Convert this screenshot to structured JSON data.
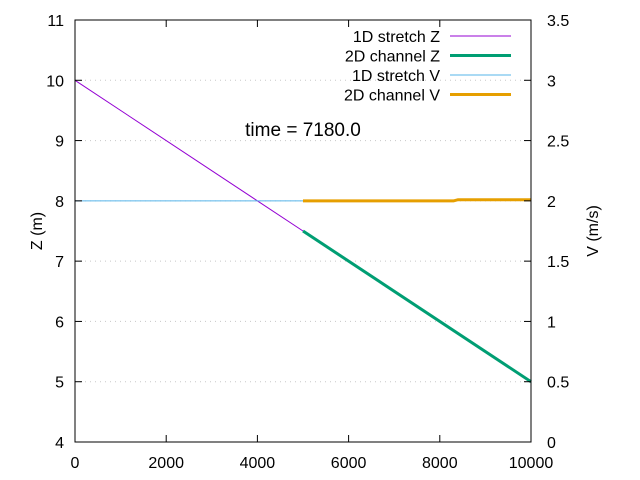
{
  "chart_data": {
    "type": "line",
    "annotation": "time = 7180.0",
    "xlabel": "",
    "ylabel": "Z (m)",
    "y2label": "V (m/s)",
    "xlim": [
      0,
      10000
    ],
    "ylim": [
      4,
      11
    ],
    "y2lim": [
      0,
      3.5
    ],
    "x_ticks": [
      0,
      2000,
      4000,
      6000,
      8000,
      10000
    ],
    "y_ticks": [
      4,
      5,
      6,
      7,
      8,
      9,
      10,
      11
    ],
    "y2_ticks": [
      "0",
      "0.5",
      "1",
      "1.5",
      "2",
      "2.5",
      "3",
      "3.5"
    ],
    "grid": "dotted horizontal at left-axis ticks",
    "legend_position": "top-right",
    "series": [
      {
        "name": "1D stretch Z",
        "axis": "y",
        "color": "#9400d3",
        "width": 1,
        "x": [
          0,
          5000
        ],
        "y": [
          10.0,
          7.5
        ]
      },
      {
        "name": "2D channel Z",
        "axis": "y",
        "color": "#009e73",
        "width": 3,
        "x": [
          5000,
          10000
        ],
        "y": [
          7.5,
          5.0
        ]
      },
      {
        "name": "1D stretch V",
        "axis": "y2",
        "color": "#56b4e9",
        "width": 1,
        "x": [
          0,
          5000
        ],
        "y": [
          2.0,
          2.0
        ]
      },
      {
        "name": "2D channel V",
        "axis": "y2",
        "color": "#e69f00",
        "width": 3,
        "x": [
          5000,
          8300,
          8400,
          10000
        ],
        "y": [
          2.0,
          2.0,
          2.01,
          2.01
        ]
      }
    ]
  }
}
